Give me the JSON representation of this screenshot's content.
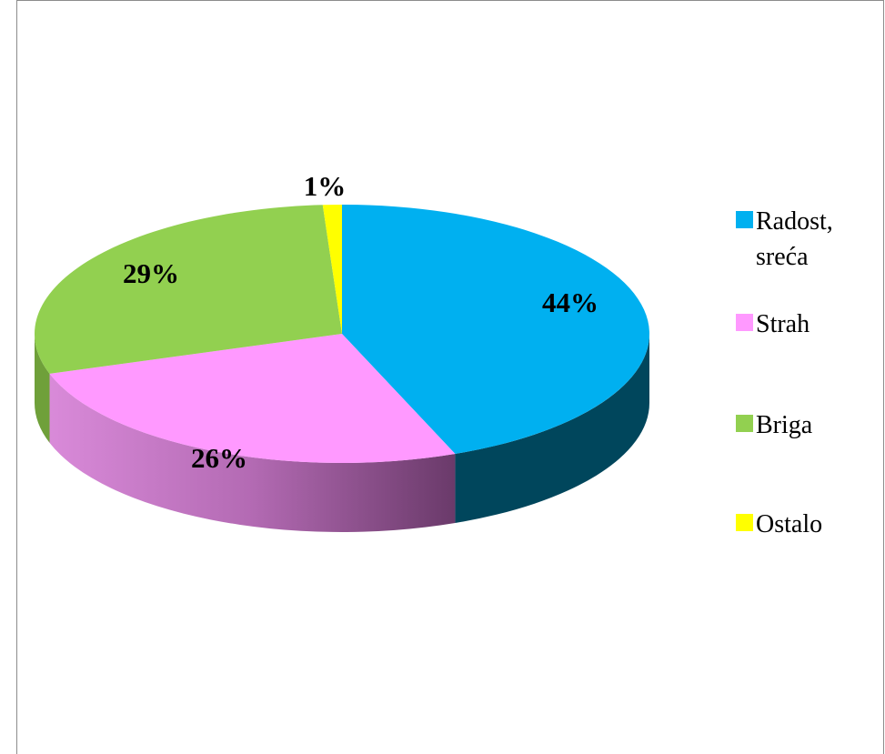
{
  "chart_data": {
    "type": "pie",
    "style": "3d",
    "title": "",
    "legend_position": "right",
    "slices": [
      {
        "name": "Radost, sreća",
        "legend_lines": [
          "Radost,",
          "sreća"
        ],
        "value": 44,
        "label": "44%",
        "color": "#00b0f0",
        "side_color": "#00465c"
      },
      {
        "name": "Strah",
        "legend_lines": [
          "Strah"
        ],
        "value": 26,
        "label": "26%",
        "color": "#ff99ff",
        "side_color": "#b66ec0"
      },
      {
        "name": "Briga",
        "legend_lines": [
          "Briga"
        ],
        "value": 29,
        "label": "29%",
        "color": "#92d050",
        "side_color": "#6fa03a"
      },
      {
        "name": "Ostalo",
        "legend_lines": [
          "Ostalo"
        ],
        "value": 1,
        "label": "1%",
        "color": "#ffff00",
        "side_color": "#bcbc00"
      }
    ]
  }
}
